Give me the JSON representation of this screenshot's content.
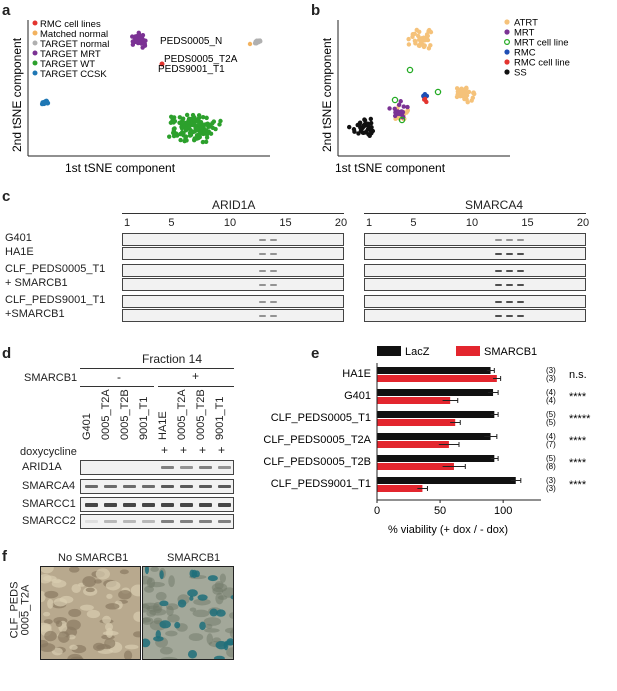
{
  "panels": {
    "a": "a",
    "b": "b",
    "c": "c",
    "d": "d",
    "e": "e",
    "f": "f"
  },
  "panel_a": {
    "xlabel": "1st tSNE component",
    "ylabel": "2nd tSNE component",
    "legend": [
      {
        "label": "RMC cell lines",
        "color": "#e3342f"
      },
      {
        "label": "Matched normal",
        "color": "#f2b25f"
      },
      {
        "label": "TARGET normal",
        "color": "#b0b0b0"
      },
      {
        "label": "TARGET MRT",
        "color": "#7b3294"
      },
      {
        "label": "TARGET WT",
        "color": "#2ca02c"
      },
      {
        "label": "TARGET CCSK",
        "color": "#1f77b4"
      }
    ],
    "annotations": [
      "PEDS0005_N",
      "PEDS0005_T2A",
      "PEDS9001_T1"
    ]
  },
  "panel_b": {
    "xlabel": "1st tSNE component",
    "ylabel": "2nd tSNE component",
    "legend": [
      {
        "label": "ATRT",
        "color": "#f5c27a",
        "marker": "dot"
      },
      {
        "label": "MRT",
        "color": "#7b3294",
        "marker": "dot"
      },
      {
        "label": "MRT cell line",
        "color": "#7b3294",
        "marker": "ring"
      },
      {
        "label": "RMC",
        "color": "#1f4fb4",
        "marker": "dot"
      },
      {
        "label": "RMC cell line",
        "color": "#e3342f",
        "marker": "dot"
      },
      {
        "label": "SS",
        "color": "#111111",
        "marker": "dot"
      }
    ]
  },
  "panel_c": {
    "titles": [
      "ARID1A",
      "SMARCA4"
    ],
    "fraction_ticks": [
      "1",
      "5",
      "10",
      "15",
      "20"
    ],
    "rows": [
      "G401",
      "HA1E",
      "CLF_PEDS0005_T1",
      "+ SMARCB1",
      "CLF_PEDS9001_T1",
      "+SMARCB1"
    ]
  },
  "panel_d": {
    "header": "Fraction 14",
    "smarcb1_label": "SMARCB1",
    "minus": "-",
    "plus": "+",
    "lanes": [
      "G401",
      "0005_T2A",
      "0005_T2B",
      "9001_T1",
      "HA1E",
      "0005_T2A",
      "0005_T2B",
      "9001_T1"
    ],
    "dox_label": "doxycycline",
    "dox_marks": [
      "+",
      "+",
      "+",
      "+"
    ],
    "blots": [
      "ARID1A",
      "SMARCA4",
      "SMARCC1",
      "SMARCC2"
    ]
  },
  "chart_data": {
    "type": "bar",
    "orientation": "horizontal",
    "categories": [
      "HA1E",
      "G401",
      "CLF_PEDS0005_T1",
      "CLF_PEDS0005_T2A",
      "CLF_PEDS0005_T2B",
      "CLF_PEDS9001_T1"
    ],
    "series": [
      {
        "name": "LacZ",
        "color": "#111111",
        "values": [
          90,
          92,
          93,
          90,
          93,
          110
        ],
        "errors": [
          3,
          4,
          3,
          5,
          3,
          4
        ],
        "n": [
          "(3)",
          "(4)",
          "(5)",
          "(4)",
          "(5)",
          "(3)"
        ]
      },
      {
        "name": "SMARCB1",
        "color": "#e3262e",
        "values": [
          95,
          58,
          62,
          57,
          61,
          36
        ],
        "errors": [
          3,
          6,
          4,
          8,
          9,
          4
        ],
        "n": [
          "(3)",
          "(4)",
          "(5)",
          "(7)",
          "(8)",
          "(3)"
        ]
      }
    ],
    "significance": [
      "n.s.",
      "****",
      "*****",
      "****",
      "****",
      "****"
    ],
    "xlabel": "% viability (+ dox / - dox)",
    "xlim": [
      0,
      130
    ],
    "xticks": [
      0,
      50,
      100
    ]
  },
  "panel_f": {
    "titles": [
      "No SMARCB1",
      "SMARCB1"
    ],
    "side_label_1": "CLF_PEDS",
    "side_label_2": "0005_T2A"
  }
}
